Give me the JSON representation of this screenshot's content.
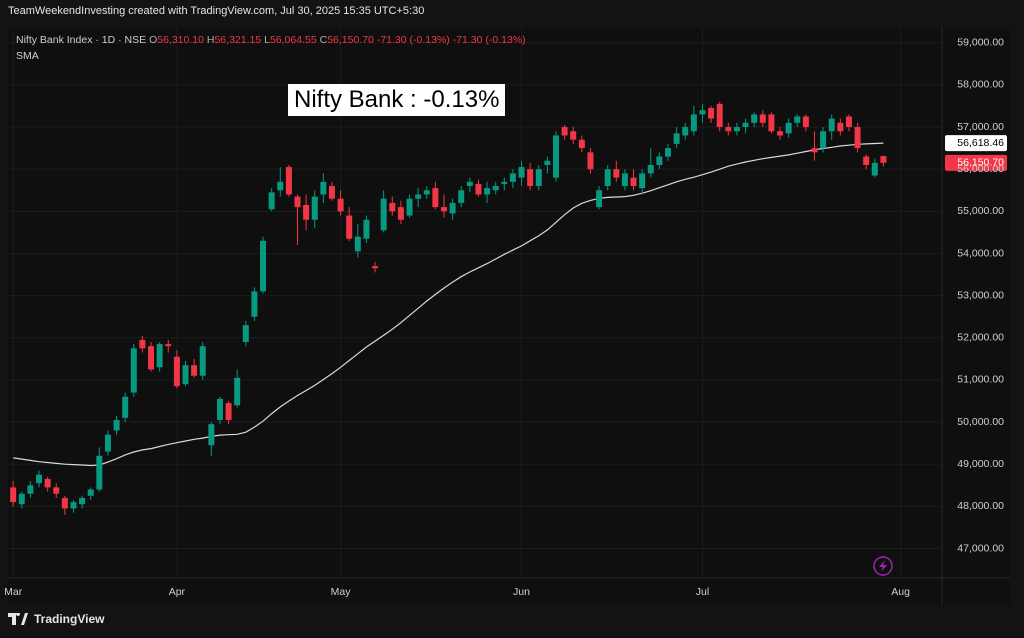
{
  "attribution": "TeamWeekendInvesting created with TradingView.com, Jul 30, 2025 15:35 UTC+5:30",
  "footer": "TradingView",
  "chart_data": {
    "type": "candlestick",
    "legend_title": "Nifty Bank Index · 1D · NSE",
    "ohlc_legend": {
      "open_key": "O",
      "open": "56,310.10",
      "high_key": "H",
      "high": "56,321.15",
      "low_key": "L",
      "low": "56,064.55",
      "close_key": "C",
      "close": "56,150.70",
      "change": "-71.30 (-0.13%)",
      "change2": "-71.30 (-0.13%)"
    },
    "indicator": "SMA",
    "annotation": "Nifty Bank : -0.13%",
    "up_color": "#089981",
    "down_color": "#f23645",
    "sma_color": "#d9d9d9",
    "grid": true,
    "xlim": [
      -0.6,
      107.8
    ],
    "xticks": [
      {
        "value": 0,
        "label": "Mar"
      },
      {
        "value": 19,
        "label": "Apr"
      },
      {
        "value": 38,
        "label": "May"
      },
      {
        "value": 59,
        "label": "Jun"
      },
      {
        "value": 80,
        "label": "Jul"
      },
      {
        "value": 103,
        "label": "Aug"
      }
    ],
    "ylim": [
      46300,
      59350
    ],
    "yticks": [
      {
        "value": 47000,
        "label": "47,000.00"
      },
      {
        "value": 48000,
        "label": "48,000.00"
      },
      {
        "value": 49000,
        "label": "49,000.00"
      },
      {
        "value": 50000,
        "label": "50,000.00"
      },
      {
        "value": 51000,
        "label": "51,000.00"
      },
      {
        "value": 52000,
        "label": "52,000.00"
      },
      {
        "value": 53000,
        "label": "53,000.00"
      },
      {
        "value": 54000,
        "label": "54,000.00"
      },
      {
        "value": 55000,
        "label": "55,000.00"
      },
      {
        "value": 56000,
        "label": "56,000.00"
      },
      {
        "value": 57000,
        "label": "57,000.00"
      },
      {
        "value": 58000,
        "label": "58,000.00"
      },
      {
        "value": 59000,
        "label": "59,000.00"
      }
    ],
    "price_tags": [
      {
        "value": 56618.46,
        "label": "56,618.46",
        "color": "#ffffff"
      },
      {
        "value": 56150.7,
        "label": "56,150.70",
        "color": "#f23645"
      }
    ],
    "open": [
      48450,
      48050,
      48300,
      48550,
      48650,
      48450,
      48200,
      47950,
      48050,
      48250,
      48400,
      49300,
      49800,
      50100,
      50700,
      51950,
      51800,
      51300,
      51850,
      51550,
      50900,
      51350,
      51100,
      49450,
      50050,
      50450,
      50400,
      51900,
      52500,
      53100,
      55050,
      55500,
      56050,
      55350,
      55150,
      54800,
      55400,
      55600,
      55300,
      54900,
      54050,
      54350,
      53700,
      54550,
      55200,
      55100,
      54900,
      55300,
      55400,
      55550,
      55100,
      54950,
      55200,
      55600,
      55650,
      55400,
      55500,
      55650,
      55700,
      55800,
      56000,
      55600,
      56100,
      55800,
      57000,
      56900,
      56700,
      56400,
      55100,
      55600,
      56000,
      55600,
      55800,
      55550,
      55900,
      56100,
      56300,
      56600,
      56800,
      56900,
      57300,
      57450,
      57550,
      57000,
      56900,
      57000,
      57100,
      57300,
      57300,
      56900,
      56850,
      57100,
      57250,
      56500,
      56500,
      56900,
      57100,
      57250,
      57000,
      56300,
      55850,
      56310.1
    ],
    "high": [
      48600,
      48350,
      48600,
      48850,
      48700,
      48550,
      48250,
      48150,
      48250,
      48450,
      49400,
      49800,
      50150,
      50700,
      51850,
      52050,
      51900,
      51900,
      51950,
      51700,
      51450,
      51500,
      51900,
      50000,
      50600,
      50500,
      51250,
      52400,
      53200,
      54400,
      55550,
      56050,
      56100,
      55400,
      55400,
      55500,
      55900,
      55700,
      55500,
      55100,
      54700,
      54900,
      53800,
      55500,
      55350,
      55250,
      55400,
      55550,
      55600,
      55700,
      55400,
      55300,
      55600,
      55800,
      55750,
      55700,
      55700,
      55800,
      56000,
      56200,
      56150,
      56100,
      56300,
      56900,
      57050,
      57000,
      56800,
      56500,
      55600,
      56100,
      56200,
      56000,
      56000,
      56000,
      56500,
      56400,
      56600,
      57000,
      57100,
      57500,
      57550,
      57500,
      57600,
      57100,
      57100,
      57200,
      57350,
      57400,
      57350,
      57000,
      57200,
      57300,
      57300,
      56900,
      57000,
      57300,
      57200,
      57300,
      57100,
      56350,
      56250,
      56321.15
    ],
    "low": [
      48000,
      47950,
      48200,
      48450,
      48350,
      48200,
      47800,
      47850,
      47950,
      48150,
      48350,
      49200,
      49700,
      50000,
      50600,
      51650,
      51200,
      51200,
      51650,
      50800,
      50850,
      51050,
      51000,
      49200,
      49950,
      49950,
      50350,
      51800,
      52400,
      53050,
      55000,
      55350,
      55350,
      54200,
      54550,
      54600,
      55200,
      55250,
      54900,
      54300,
      53900,
      54250,
      53550,
      54500,
      54900,
      54700,
      54850,
      55100,
      55300,
      55050,
      54850,
      54800,
      55100,
      55450,
      55350,
      55200,
      55400,
      55500,
      55550,
      55600,
      55500,
      55500,
      55900,
      55700,
      56700,
      56600,
      56400,
      55900,
      55050,
      55500,
      55700,
      55500,
      55500,
      55400,
      55800,
      56000,
      56200,
      56500,
      56700,
      56800,
      57100,
      57100,
      56900,
      56800,
      56800,
      56850,
      57000,
      57000,
      56850,
      56700,
      56750,
      57000,
      56900,
      56200,
      56400,
      56700,
      56800,
      56900,
      56400,
      56000,
      55800,
      56064.55
    ],
    "close": [
      48100,
      48300,
      48500,
      48750,
      48450,
      48300,
      47950,
      48100,
      48200,
      48400,
      49200,
      49700,
      50050,
      50600,
      51750,
      51750,
      51250,
      51850,
      51800,
      50850,
      51350,
      51100,
      51800,
      49950,
      50550,
      50050,
      51050,
      52300,
      53100,
      54300,
      55450,
      55700,
      55400,
      55100,
      54800,
      55350,
      55700,
      55300,
      55000,
      54350,
      54400,
      54800,
      53650,
      55300,
      55000,
      54800,
      55300,
      55400,
      55500,
      55100,
      55000,
      55200,
      55500,
      55700,
      55400,
      55550,
      55600,
      55700,
      55900,
      56050,
      55600,
      56000,
      56200,
      56800,
      56800,
      56700,
      56500,
      56000,
      55500,
      56000,
      55800,
      55900,
      55600,
      55900,
      56100,
      56300,
      56500,
      56850,
      57000,
      57300,
      57400,
      57200,
      57000,
      56900,
      57000,
      57100,
      57300,
      57100,
      56900,
      56800,
      57100,
      57250,
      57000,
      56400,
      56900,
      57200,
      56900,
      57000,
      56500,
      56100,
      56150,
      56150.7
    ],
    "sma": [
      49150,
      49120,
      49090,
      49060,
      49040,
      49020,
      49000,
      48990,
      48980,
      48970,
      48980,
      49050,
      49130,
      49220,
      49290,
      49340,
      49370,
      49420,
      49470,
      49510,
      49550,
      49590,
      49620,
      49660,
      49690,
      49700,
      49710,
      49760,
      49880,
      50020,
      50200,
      50360,
      50500,
      50630,
      50750,
      50870,
      51010,
      51150,
      51300,
      51460,
      51620,
      51780,
      51920,
      52060,
      52200,
      52360,
      52530,
      52700,
      52870,
      53030,
      53180,
      53320,
      53450,
      53560,
      53660,
      53760,
      53870,
      53980,
      54080,
      54180,
      54300,
      54420,
      54560,
      54740,
      54920,
      55080,
      55190,
      55260,
      55310,
      55330,
      55340,
      55350,
      55380,
      55430,
      55490,
      55560,
      55630,
      55700,
      55760,
      55810,
      55870,
      55930,
      56000,
      56070,
      56120,
      56170,
      56210,
      56250,
      56280,
      56310,
      56340,
      56380,
      56420,
      56460,
      56490,
      56520,
      56550,
      56570,
      56590,
      56600,
      56610,
      56618.46
    ]
  }
}
